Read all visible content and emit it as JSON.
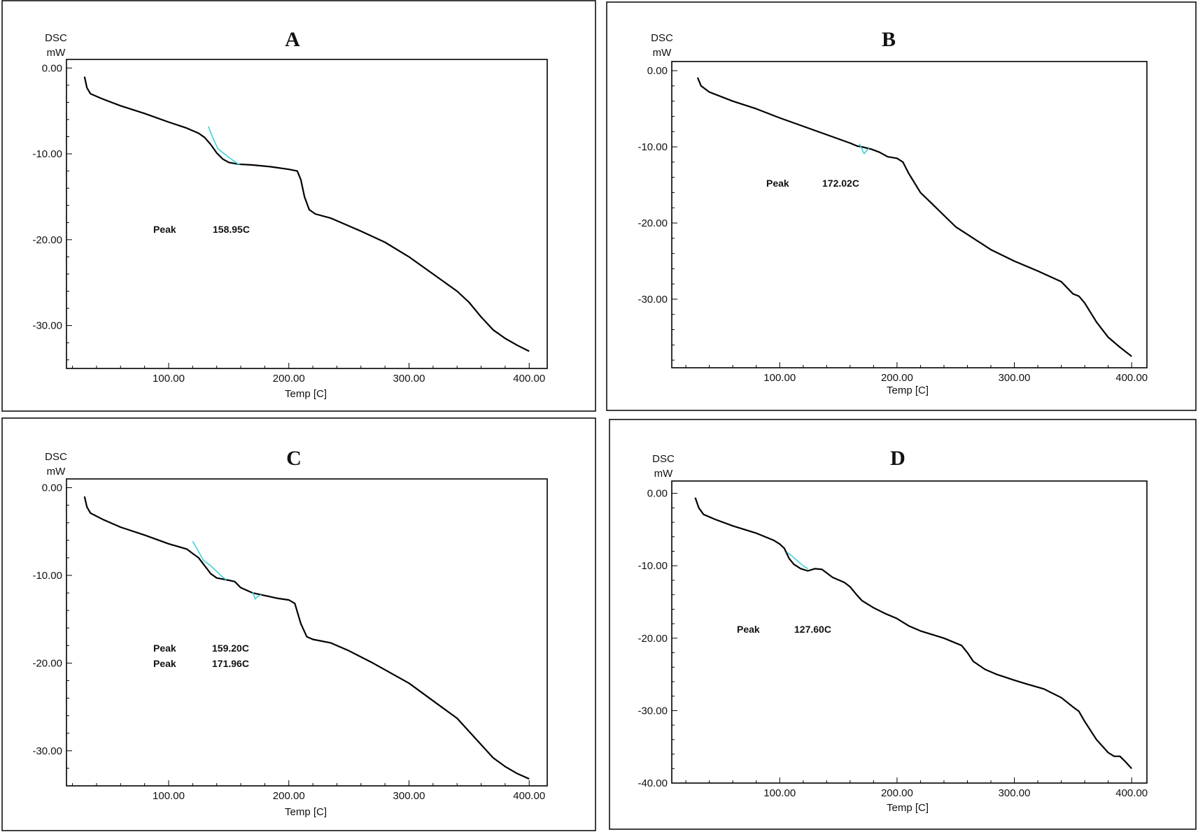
{
  "chart_data": [
    {
      "type": "line",
      "title": "A",
      "ylabel_top": "DSC",
      "ylabel_unit": "mW",
      "xlabel": "Temp  [C]",
      "xlim": [
        15,
        415
      ],
      "ylim": [
        -35,
        1
      ],
      "xticks": [
        "100.00",
        "200.00",
        "300.00",
        "400.00"
      ],
      "yticks": [
        "0.00",
        "-10.00",
        "-20.00",
        "-30.00"
      ],
      "series": [
        {
          "color": "#000000",
          "points": [
            [
              30,
              -1
            ],
            [
              32,
              -2.3
            ],
            [
              35,
              -3
            ],
            [
              45,
              -3.6
            ],
            [
              60,
              -4.4
            ],
            [
              80,
              -5.3
            ],
            [
              100,
              -6.3
            ],
            [
              115,
              -7
            ],
            [
              125,
              -7.6
            ],
            [
              130,
              -8.1
            ],
            [
              135,
              -8.9
            ],
            [
              140,
              -9.9
            ],
            [
              145,
              -10.6
            ],
            [
              150,
              -11
            ],
            [
              158,
              -11.2
            ],
            [
              170,
              -11.3
            ],
            [
              185,
              -11.5
            ],
            [
              200,
              -11.8
            ],
            [
              207,
              -12
            ],
            [
              210,
              -13
            ],
            [
              213,
              -15
            ],
            [
              217,
              -16.5
            ],
            [
              222,
              -17
            ],
            [
              235,
              -17.5
            ],
            [
              240,
              -17.8
            ],
            [
              260,
              -19
            ],
            [
              280,
              -20.3
            ],
            [
              300,
              -22
            ],
            [
              320,
              -24
            ],
            [
              340,
              -26
            ],
            [
              350,
              -27.3
            ],
            [
              360,
              -29
            ],
            [
              370,
              -30.5
            ],
            [
              380,
              -31.5
            ],
            [
              390,
              -32.3
            ],
            [
              400,
              -33
            ]
          ]
        },
        {
          "color": "#3fd0d8",
          "points": [
            [
              133,
              -6.8
            ],
            [
              137,
              -8.2
            ],
            [
              141,
              -9.4
            ],
            [
              150,
              -10.4
            ],
            [
              158,
              -11.2
            ],
            [
              160,
              -11.1
            ]
          ]
        }
      ],
      "annotations": [
        {
          "label": "Peak",
          "value": "158.95C"
        }
      ]
    },
    {
      "type": "line",
      "title": "B",
      "ylabel_top": "DSC",
      "ylabel_unit": "mW",
      "xlabel": "Temp  [C]",
      "xlim": [
        8,
        413
      ],
      "ylim": [
        -39,
        1.2
      ],
      "xticks": [
        "100.00",
        "200.00",
        "300.00",
        "400.00"
      ],
      "yticks": [
        "0.00",
        "-10.00",
        "-20.00",
        "-30.00"
      ],
      "series": [
        {
          "color": "#000000",
          "points": [
            [
              30,
              -0.9
            ],
            [
              33,
              -2
            ],
            [
              40,
              -2.8
            ],
            [
              60,
              -4
            ],
            [
              80,
              -5
            ],
            [
              100,
              -6.2
            ],
            [
              120,
              -7.3
            ],
            [
              140,
              -8.4
            ],
            [
              160,
              -9.5
            ],
            [
              166,
              -9.9
            ],
            [
              170,
              -10
            ],
            [
              178,
              -10.3
            ],
            [
              185,
              -10.7
            ],
            [
              192,
              -11.3
            ],
            [
              200,
              -11.5
            ],
            [
              205,
              -12
            ],
            [
              210,
              -13.5
            ],
            [
              220,
              -16
            ],
            [
              230,
              -17.5
            ],
            [
              240,
              -19
            ],
            [
              250,
              -20.5
            ],
            [
              260,
              -21.5
            ],
            [
              280,
              -23.5
            ],
            [
              300,
              -25
            ],
            [
              320,
              -26.3
            ],
            [
              340,
              -27.7
            ],
            [
              345,
              -28.5
            ],
            [
              350,
              -29.3
            ],
            [
              355,
              -29.6
            ],
            [
              360,
              -30.5
            ],
            [
              370,
              -33
            ],
            [
              380,
              -35
            ],
            [
              390,
              -36.3
            ],
            [
              400,
              -37.5
            ]
          ]
        },
        {
          "color": "#3fd0d8",
          "points": [
            [
              168,
              -9.6
            ],
            [
              171,
              -10.6
            ],
            [
              172,
              -10.9
            ],
            [
              174,
              -10.5
            ],
            [
              176,
              -10.2
            ]
          ]
        }
      ],
      "annotations": [
        {
          "label": "Peak",
          "value": "172.02C"
        }
      ]
    },
    {
      "type": "line",
      "title": "C",
      "ylabel_top": "DSC",
      "ylabel_unit": "mW",
      "xlabel": "Temp  [C]",
      "xlim": [
        15,
        415
      ],
      "ylim": [
        -34,
        1
      ],
      "xticks": [
        "100.00",
        "200.00",
        "300.00",
        "400.00"
      ],
      "yticks": [
        "0.00",
        "-10.00",
        "-20.00",
        "-30.00"
      ],
      "series": [
        {
          "color": "#000000",
          "points": [
            [
              30,
              -1
            ],
            [
              32,
              -2.2
            ],
            [
              35,
              -2.9
            ],
            [
              45,
              -3.6
            ],
            [
              60,
              -4.5
            ],
            [
              80,
              -5.4
            ],
            [
              100,
              -6.4
            ],
            [
              115,
              -7
            ],
            [
              120,
              -7.5
            ],
            [
              125,
              -8
            ],
            [
              130,
              -8.9
            ],
            [
              135,
              -9.8
            ],
            [
              140,
              -10.3
            ],
            [
              148,
              -10.5
            ],
            [
              155,
              -10.7
            ],
            [
              160,
              -11.4
            ],
            [
              170,
              -12
            ],
            [
              180,
              -12.3
            ],
            [
              190,
              -12.6
            ],
            [
              200,
              -12.8
            ],
            [
              205,
              -13.2
            ],
            [
              210,
              -15.5
            ],
            [
              215,
              -17
            ],
            [
              220,
              -17.3
            ],
            [
              235,
              -17.7
            ],
            [
              250,
              -18.6
            ],
            [
              270,
              -20
            ],
            [
              300,
              -22.3
            ],
            [
              320,
              -24.3
            ],
            [
              340,
              -26.3
            ],
            [
              350,
              -27.8
            ],
            [
              360,
              -29.3
            ],
            [
              370,
              -30.8
            ],
            [
              380,
              -31.8
            ],
            [
              390,
              -32.6
            ],
            [
              400,
              -33.2
            ]
          ]
        },
        {
          "color": "#3fd0d8",
          "points": [
            [
              120,
              -6.1
            ],
            [
              125,
              -7.3
            ],
            [
              129,
              -8.3
            ],
            [
              135,
              -8.9
            ],
            [
              145,
              -10.2
            ],
            [
              148,
              -10.5
            ]
          ]
        },
        {
          "color": "#3fd0d8",
          "points": [
            [
              170,
              -11.9
            ],
            [
              172,
              -12.7
            ],
            [
              174,
              -12.4
            ],
            [
              177,
              -12.2
            ]
          ]
        }
      ],
      "annotations": [
        {
          "label": "Peak",
          "value": "159.20C"
        },
        {
          "label": "Peak",
          "value": "171.96C"
        }
      ]
    },
    {
      "type": "line",
      "title": "D",
      "ylabel_top": "DSC",
      "ylabel_unit": "mW",
      "xlabel": "Temp  [C]",
      "xlim": [
        8,
        413
      ],
      "ylim": [
        -40,
        1.7
      ],
      "xticks": [
        "100.00",
        "200.00",
        "300.00",
        "400.00"
      ],
      "yticks": [
        "0.00",
        "-10.00",
        "-20.00",
        "-30.00",
        "-40.00"
      ],
      "series": [
        {
          "color": "#000000",
          "points": [
            [
              28,
              -0.6
            ],
            [
              31,
              -2
            ],
            [
              35,
              -2.9
            ],
            [
              45,
              -3.6
            ],
            [
              60,
              -4.5
            ],
            [
              80,
              -5.5
            ],
            [
              95,
              -6.5
            ],
            [
              100,
              -7
            ],
            [
              104,
              -7.6
            ],
            [
              106,
              -8.3
            ],
            [
              108,
              -9
            ],
            [
              112,
              -9.8
            ],
            [
              118,
              -10.4
            ],
            [
              124,
              -10.7
            ],
            [
              130,
              -10.4
            ],
            [
              136,
              -10.5
            ],
            [
              145,
              -11.6
            ],
            [
              155,
              -12.3
            ],
            [
              160,
              -12.9
            ],
            [
              165,
              -13.9
            ],
            [
              170,
              -14.8
            ],
            [
              180,
              -15.8
            ],
            [
              190,
              -16.6
            ],
            [
              200,
              -17.3
            ],
            [
              210,
              -18.3
            ],
            [
              220,
              -19
            ],
            [
              240,
              -20
            ],
            [
              255,
              -21
            ],
            [
              260,
              -22
            ],
            [
              265,
              -23.2
            ],
            [
              275,
              -24.3
            ],
            [
              285,
              -25
            ],
            [
              300,
              -25.8
            ],
            [
              310,
              -26.3
            ],
            [
              325,
              -27
            ],
            [
              340,
              -28.2
            ],
            [
              350,
              -29.5
            ],
            [
              355,
              -30.1
            ],
            [
              360,
              -31.5
            ],
            [
              370,
              -34
            ],
            [
              380,
              -35.8
            ],
            [
              385,
              -36.3
            ],
            [
              390,
              -36.3
            ],
            [
              395,
              -37.1
            ],
            [
              400,
              -38
            ]
          ]
        },
        {
          "color": "#3fd0d8",
          "points": [
            [
              106,
              -8.1
            ],
            [
              110,
              -8.6
            ],
            [
              115,
              -9.3
            ],
            [
              120,
              -10
            ],
            [
              124,
              -10.4
            ]
          ]
        }
      ],
      "annotations": [
        {
          "label": "Peak",
          "value": "127.60C"
        }
      ]
    }
  ]
}
